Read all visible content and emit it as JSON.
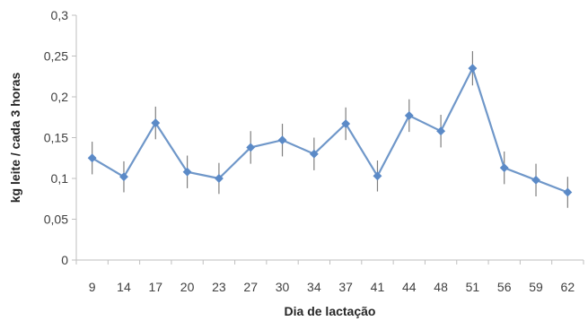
{
  "chart_data": {
    "type": "line",
    "title": "",
    "xlabel": "Dia de lactação",
    "ylabel": "kg leite / cada 3 horas",
    "categories": [
      "9",
      "14",
      "17",
      "20",
      "23",
      "27",
      "30",
      "34",
      "37",
      "41",
      "44",
      "48",
      "51",
      "56",
      "59",
      "62"
    ],
    "series": [
      {
        "values": [
          0.125,
          0.102,
          0.168,
          0.108,
          0.1,
          0.138,
          0.147,
          0.13,
          0.167,
          0.103,
          0.177,
          0.158,
          0.235,
          0.113,
          0.098,
          0.083
        ],
        "error": [
          0.02,
          0.019,
          0.02,
          0.02,
          0.019,
          0.02,
          0.02,
          0.02,
          0.02,
          0.019,
          0.02,
          0.02,
          0.021,
          0.02,
          0.02,
          0.019
        ]
      }
    ],
    "ylim": [
      0,
      0.3
    ],
    "yticks": [
      "0",
      "0,05",
      "0,1",
      "0,15",
      "0,2",
      "0,25",
      "0,3"
    ],
    "ytick_values": [
      0,
      0.05,
      0.1,
      0.15,
      0.2,
      0.25,
      0.3
    ],
    "grid": false,
    "legend": "none",
    "colors": {
      "line": "#6f97c9",
      "marker": "#5b8ac7",
      "error_bar": "#7f7f7f",
      "axis": "#bfbfbf",
      "text": "#404040"
    }
  }
}
